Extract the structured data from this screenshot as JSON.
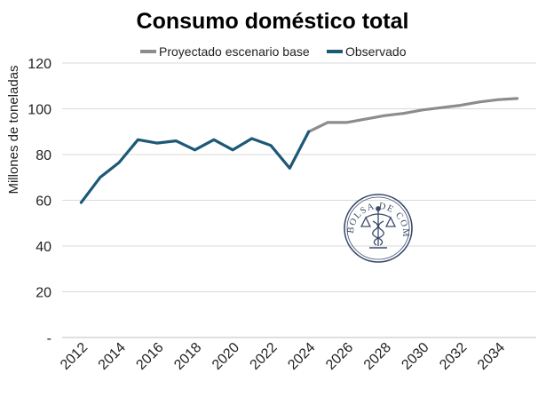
{
  "chart_data": {
    "type": "line",
    "title": "Consumo doméstico total",
    "ylabel": "Millones de toneladas",
    "xlabel": "",
    "ylim": [
      0,
      120
    ],
    "xlim": [
      2011,
      2036
    ],
    "y_ticks": [
      {
        "value": 0,
        "label": "-"
      },
      {
        "value": 20,
        "label": "20"
      },
      {
        "value": 40,
        "label": "40"
      },
      {
        "value": 60,
        "label": "60"
      },
      {
        "value": 80,
        "label": "80"
      },
      {
        "value": 100,
        "label": "100"
      },
      {
        "value": 120,
        "label": "120"
      }
    ],
    "x_ticks": [
      "2012",
      "2014",
      "2016",
      "2018",
      "2020",
      "2022",
      "2024",
      "2026",
      "2028",
      "2030",
      "2032",
      "2034"
    ],
    "grid": "horizontal",
    "legend_position": "top",
    "series": [
      {
        "name": "Proyectado escenario base",
        "color": "#8c8c8c",
        "x": [
          2024,
          2025,
          2026,
          2027,
          2028,
          2029,
          2030,
          2031,
          2032,
          2033,
          2034,
          2035
        ],
        "y": [
          90.0,
          94.0,
          94.0,
          95.5,
          97.0,
          98.0,
          99.5,
          100.5,
          101.5,
          103.0,
          104.0,
          104.5
        ]
      },
      {
        "name": "Observado",
        "color": "#1c5877",
        "x": [
          2012,
          2013,
          2014,
          2015,
          2016,
          2017,
          2018,
          2019,
          2020,
          2021,
          2022,
          2023,
          2024
        ],
        "y": [
          59.0,
          70.0,
          76.5,
          86.5,
          85.0,
          86.0,
          82.0,
          86.5,
          82.0,
          87.0,
          84.0,
          74.0,
          90.0
        ]
      }
    ]
  },
  "watermark": {
    "text": "BOLSA DE COMERCIO DE ROSARIO",
    "color": "#3a4a6a"
  }
}
